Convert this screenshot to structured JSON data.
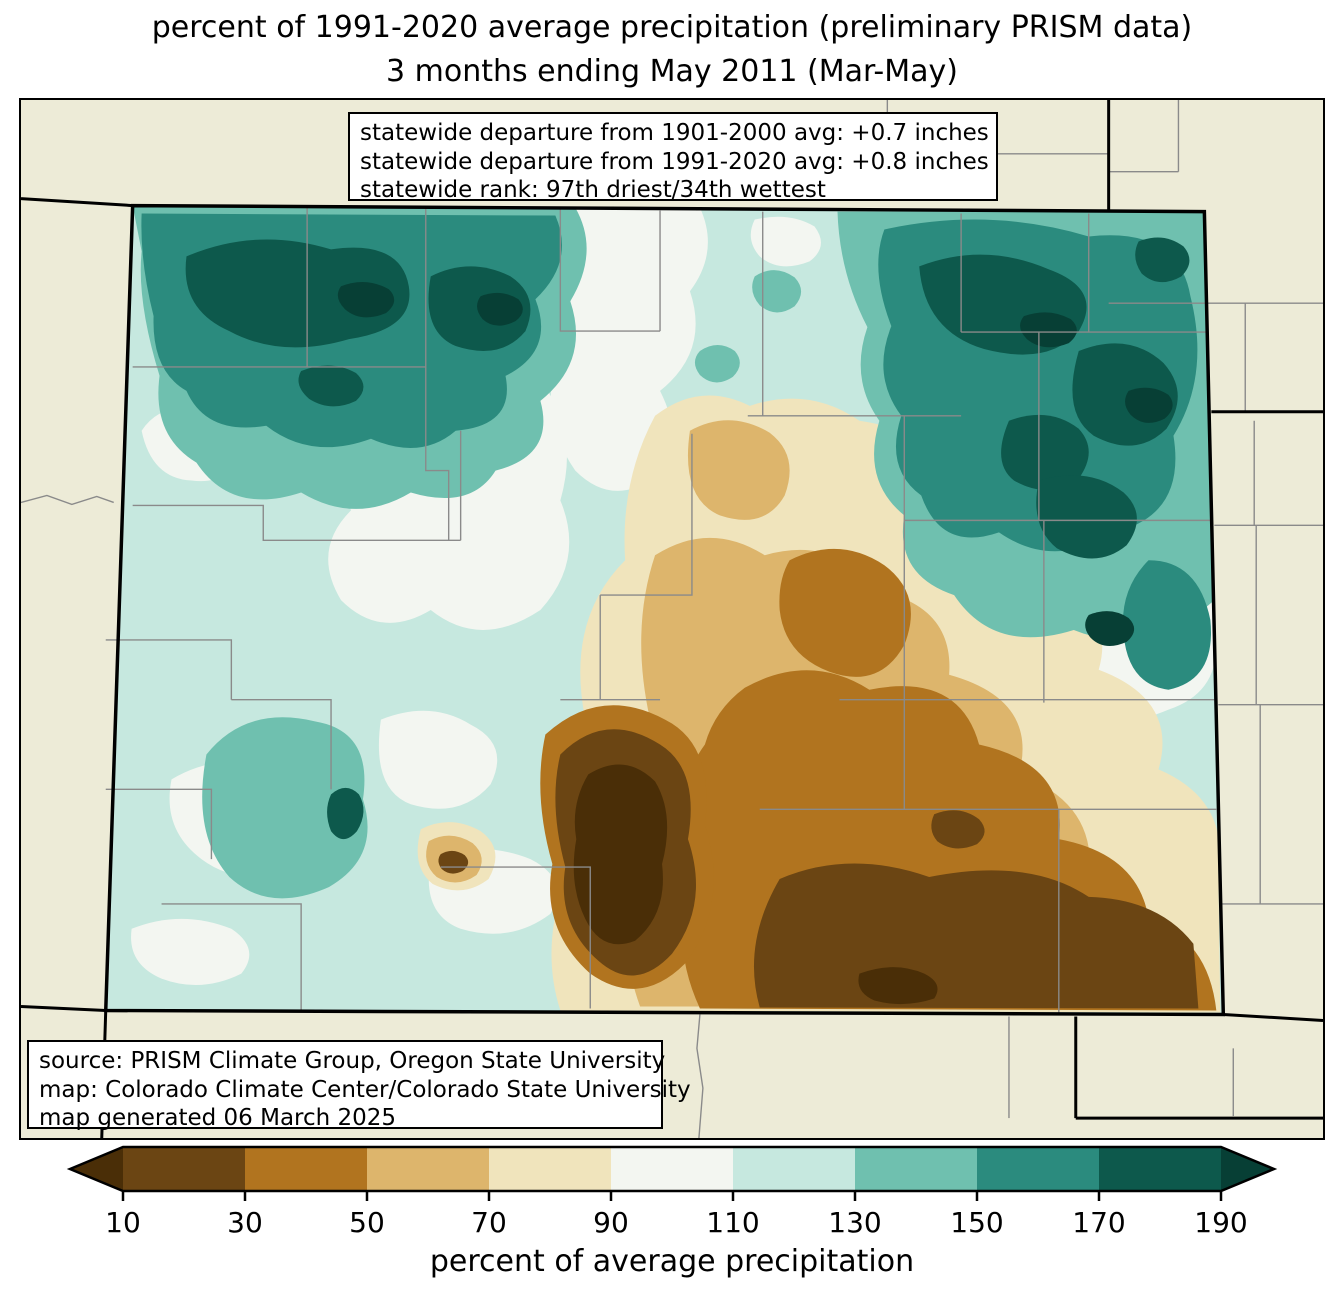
{
  "title": {
    "line1": "percent of 1991-2020 average precipitation (preliminary PRISM data)",
    "line2": "3 months ending May 2011 (Mar-May)"
  },
  "stats_box": {
    "lines": [
      "statewide departure from 1901-2000 avg: +0.7 inches",
      "statewide departure from 1991-2020 avg: +0.8 inches",
      "statewide rank: 97th driest/34th wettest"
    ]
  },
  "source_box": {
    "lines": [
      "source: PRISM Climate Group, Oregon State University",
      "map: Colorado Climate Center/Colorado State University",
      "map generated 06 March 2025"
    ]
  },
  "colorbar": {
    "label": "percent of average precipitation",
    "ticks": [
      "10",
      "30",
      "50",
      "70",
      "90",
      "110",
      "130",
      "150",
      "170",
      "190"
    ],
    "segments": [
      {
        "range": "10-30",
        "color": "#6B4513"
      },
      {
        "range": "30-50",
        "color": "#B1741F"
      },
      {
        "range": "50-70",
        "color": "#DDB56C"
      },
      {
        "range": "70-90",
        "color": "#F0E4BC"
      },
      {
        "range": "90-110",
        "color": "#F3F6F1"
      },
      {
        "range": "110-130",
        "color": "#C6E8DF"
      },
      {
        "range": "130-150",
        "color": "#6FC0AF"
      },
      {
        "range": "150-170",
        "color": "#2B8B7E"
      },
      {
        "range": "170-190",
        "color": "#0D594C"
      }
    ],
    "left_arrow_color": "#4A2E07",
    "right_arrow_color": "#073F35"
  },
  "map": {
    "region": "Colorado",
    "background_color": "#EDEBD7",
    "state_border_color": "#000000",
    "county_line_color": "#8a8a8a"
  }
}
